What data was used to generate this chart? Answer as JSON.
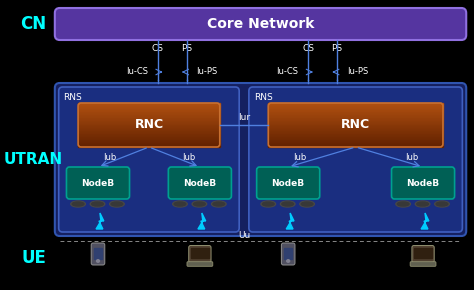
{
  "bg_color": "#000000",
  "cn_label_color": "#00ffff",
  "utran_label_color": "#00ffff",
  "ue_label_color": "#00ffff",
  "cn_box_color": "#5535a0",
  "cn_box_edge": "#9070e0",
  "utran_box_color": "#152060",
  "utran_box_edge": "#3055b0",
  "rns_box_color": "#1a2e80",
  "rns_box_edge": "#4060c0",
  "rnc_color1": "#b05010",
  "rnc_color2": "#602000",
  "rnc_edge": "#c87030",
  "nodeb_color": "#006055",
  "nodeb_edge": "#00a090",
  "line_color": "#5080e0",
  "text_color": "#ffffff",
  "lightning_color": "#00ccff",
  "uu_line_color": "#888888",
  "title": "Core Network",
  "cn_label": "CN",
  "utran_label": "UTRAN",
  "ue_label": "UE"
}
